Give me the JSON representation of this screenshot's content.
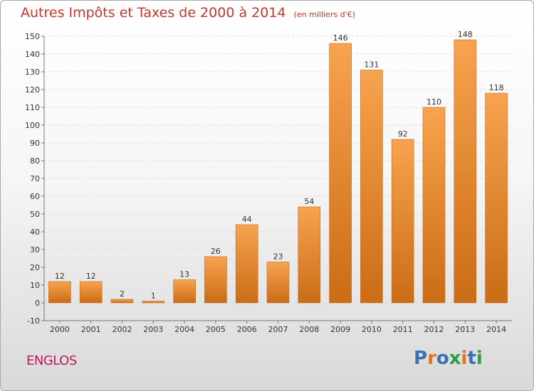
{
  "header": {
    "title": "Autres Impôts et Taxes de 2000 à 2014",
    "unit": "(en milliers d'€)"
  },
  "footer": {
    "commune": "ENGLOS",
    "logo_text": "Proxiti",
    "logo_colors": [
      "#3d6fb4",
      "#e8731c",
      "#3d6fb4",
      "#2e9e3f",
      "#e8731c",
      "#3d6fb4",
      "#2e9e3f"
    ]
  },
  "colors": {
    "bar_top": "#f7a34f",
    "bar_bottom": "#cb6c16",
    "bar_edge": "#c9681a",
    "title": "#c0392b",
    "commune": "#c2185b"
  },
  "chart_data": {
    "type": "bar",
    "title": "Autres Impôts et Taxes de 2000 à 2014",
    "subtitle": "(en milliers d'€)",
    "xlabel": "",
    "ylabel": "",
    "categories": [
      "2000",
      "2001",
      "2002",
      "2003",
      "2004",
      "2005",
      "2006",
      "2007",
      "2008",
      "2009",
      "2010",
      "2011",
      "2012",
      "2013",
      "2014"
    ],
    "values": [
      12,
      12,
      2,
      1,
      13,
      26,
      44,
      23,
      54,
      146,
      131,
      92,
      110,
      148,
      118
    ],
    "ylim": [
      -10,
      150
    ],
    "yticks": [
      -10,
      0,
      10,
      20,
      30,
      40,
      50,
      60,
      70,
      80,
      90,
      100,
      110,
      120,
      130,
      140,
      150
    ],
    "grid": "horizontal",
    "legend": "none"
  }
}
